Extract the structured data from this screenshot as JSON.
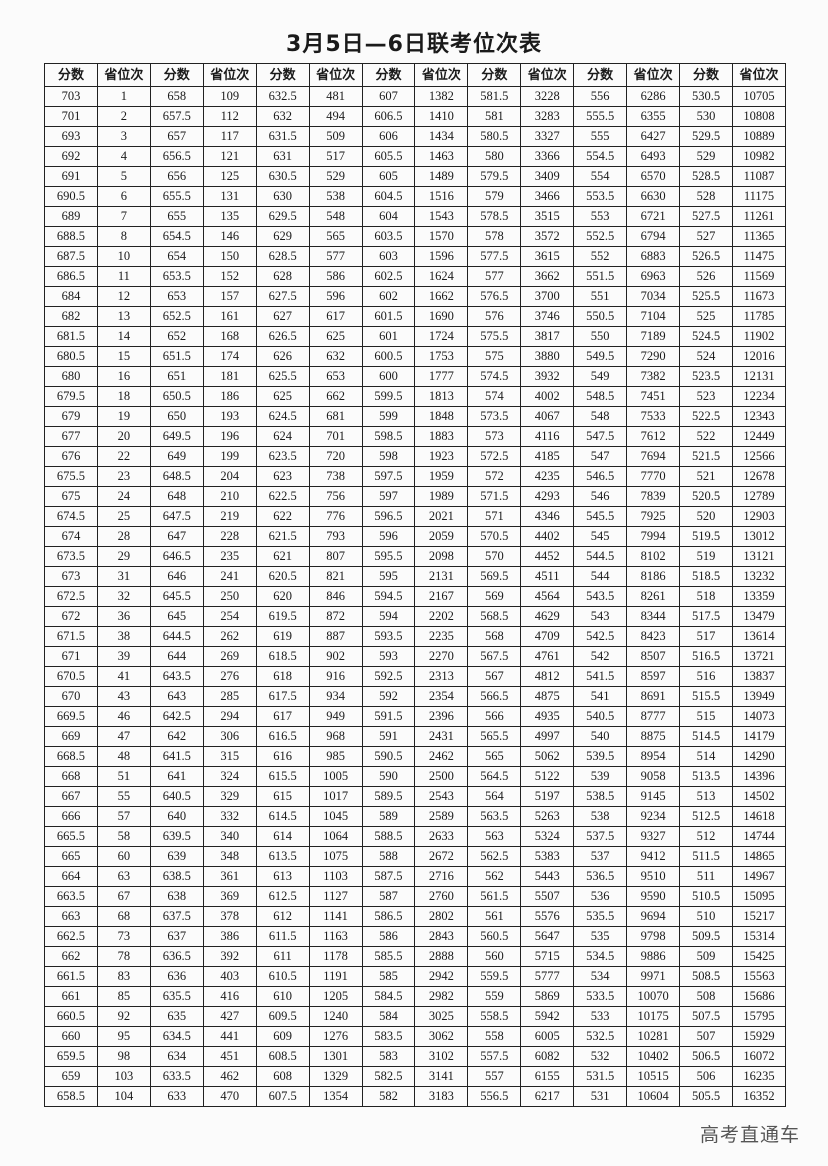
{
  "title": "3月5日—6日联考位次表",
  "watermark": "高考直通车",
  "columns": [
    "分数",
    "省位次",
    "分数",
    "省位次",
    "分数",
    "省位次",
    "分数",
    "省位次",
    "分数",
    "省位次",
    "分数",
    "省位次",
    "分数",
    "省位次"
  ],
  "rows": [
    [
      "703",
      "1",
      "658",
      "109",
      "632.5",
      "481",
      "607",
      "1382",
      "581.5",
      "3228",
      "556",
      "6286",
      "530.5",
      "10705"
    ],
    [
      "701",
      "2",
      "657.5",
      "112",
      "632",
      "494",
      "606.5",
      "1410",
      "581",
      "3283",
      "555.5",
      "6355",
      "530",
      "10808"
    ],
    [
      "693",
      "3",
      "657",
      "117",
      "631.5",
      "509",
      "606",
      "1434",
      "580.5",
      "3327",
      "555",
      "6427",
      "529.5",
      "10889"
    ],
    [
      "692",
      "4",
      "656.5",
      "121",
      "631",
      "517",
      "605.5",
      "1463",
      "580",
      "3366",
      "554.5",
      "6493",
      "529",
      "10982"
    ],
    [
      "691",
      "5",
      "656",
      "125",
      "630.5",
      "529",
      "605",
      "1489",
      "579.5",
      "3409",
      "554",
      "6570",
      "528.5",
      "11087"
    ],
    [
      "690.5",
      "6",
      "655.5",
      "131",
      "630",
      "538",
      "604.5",
      "1516",
      "579",
      "3466",
      "553.5",
      "6630",
      "528",
      "11175"
    ],
    [
      "689",
      "7",
      "655",
      "135",
      "629.5",
      "548",
      "604",
      "1543",
      "578.5",
      "3515",
      "553",
      "6721",
      "527.5",
      "11261"
    ],
    [
      "688.5",
      "8",
      "654.5",
      "146",
      "629",
      "565",
      "603.5",
      "1570",
      "578",
      "3572",
      "552.5",
      "6794",
      "527",
      "11365"
    ],
    [
      "687.5",
      "10",
      "654",
      "150",
      "628.5",
      "577",
      "603",
      "1596",
      "577.5",
      "3615",
      "552",
      "6883",
      "526.5",
      "11475"
    ],
    [
      "686.5",
      "11",
      "653.5",
      "152",
      "628",
      "586",
      "602.5",
      "1624",
      "577",
      "3662",
      "551.5",
      "6963",
      "526",
      "11569"
    ],
    [
      "684",
      "12",
      "653",
      "157",
      "627.5",
      "596",
      "602",
      "1662",
      "576.5",
      "3700",
      "551",
      "7034",
      "525.5",
      "11673"
    ],
    [
      "682",
      "13",
      "652.5",
      "161",
      "627",
      "617",
      "601.5",
      "1690",
      "576",
      "3746",
      "550.5",
      "7104",
      "525",
      "11785"
    ],
    [
      "681.5",
      "14",
      "652",
      "168",
      "626.5",
      "625",
      "601",
      "1724",
      "575.5",
      "3817",
      "550",
      "7189",
      "524.5",
      "11902"
    ],
    [
      "680.5",
      "15",
      "651.5",
      "174",
      "626",
      "632",
      "600.5",
      "1753",
      "575",
      "3880",
      "549.5",
      "7290",
      "524",
      "12016"
    ],
    [
      "680",
      "16",
      "651",
      "181",
      "625.5",
      "653",
      "600",
      "1777",
      "574.5",
      "3932",
      "549",
      "7382",
      "523.5",
      "12131"
    ],
    [
      "679.5",
      "18",
      "650.5",
      "186",
      "625",
      "662",
      "599.5",
      "1813",
      "574",
      "4002",
      "548.5",
      "7451",
      "523",
      "12234"
    ],
    [
      "679",
      "19",
      "650",
      "193",
      "624.5",
      "681",
      "599",
      "1848",
      "573.5",
      "4067",
      "548",
      "7533",
      "522.5",
      "12343"
    ],
    [
      "677",
      "20",
      "649.5",
      "196",
      "624",
      "701",
      "598.5",
      "1883",
      "573",
      "4116",
      "547.5",
      "7612",
      "522",
      "12449"
    ],
    [
      "676",
      "22",
      "649",
      "199",
      "623.5",
      "720",
      "598",
      "1923",
      "572.5",
      "4185",
      "547",
      "7694",
      "521.5",
      "12566"
    ],
    [
      "675.5",
      "23",
      "648.5",
      "204",
      "623",
      "738",
      "597.5",
      "1959",
      "572",
      "4235",
      "546.5",
      "7770",
      "521",
      "12678"
    ],
    [
      "675",
      "24",
      "648",
      "210",
      "622.5",
      "756",
      "597",
      "1989",
      "571.5",
      "4293",
      "546",
      "7839",
      "520.5",
      "12789"
    ],
    [
      "674.5",
      "25",
      "647.5",
      "219",
      "622",
      "776",
      "596.5",
      "2021",
      "571",
      "4346",
      "545.5",
      "7925",
      "520",
      "12903"
    ],
    [
      "674",
      "28",
      "647",
      "228",
      "621.5",
      "793",
      "596",
      "2059",
      "570.5",
      "4402",
      "545",
      "7994",
      "519.5",
      "13012"
    ],
    [
      "673.5",
      "29",
      "646.5",
      "235",
      "621",
      "807",
      "595.5",
      "2098",
      "570",
      "4452",
      "544.5",
      "8102",
      "519",
      "13121"
    ],
    [
      "673",
      "31",
      "646",
      "241",
      "620.5",
      "821",
      "595",
      "2131",
      "569.5",
      "4511",
      "544",
      "8186",
      "518.5",
      "13232"
    ],
    [
      "672.5",
      "32",
      "645.5",
      "250",
      "620",
      "846",
      "594.5",
      "2167",
      "569",
      "4564",
      "543.5",
      "8261",
      "518",
      "13359"
    ],
    [
      "672",
      "36",
      "645",
      "254",
      "619.5",
      "872",
      "594",
      "2202",
      "568.5",
      "4629",
      "543",
      "8344",
      "517.5",
      "13479"
    ],
    [
      "671.5",
      "38",
      "644.5",
      "262",
      "619",
      "887",
      "593.5",
      "2235",
      "568",
      "4709",
      "542.5",
      "8423",
      "517",
      "13614"
    ],
    [
      "671",
      "39",
      "644",
      "269",
      "618.5",
      "902",
      "593",
      "2270",
      "567.5",
      "4761",
      "542",
      "8507",
      "516.5",
      "13721"
    ],
    [
      "670.5",
      "41",
      "643.5",
      "276",
      "618",
      "916",
      "592.5",
      "2313",
      "567",
      "4812",
      "541.5",
      "8597",
      "516",
      "13837"
    ],
    [
      "670",
      "43",
      "643",
      "285",
      "617.5",
      "934",
      "592",
      "2354",
      "566.5",
      "4875",
      "541",
      "8691",
      "515.5",
      "13949"
    ],
    [
      "669.5",
      "46",
      "642.5",
      "294",
      "617",
      "949",
      "591.5",
      "2396",
      "566",
      "4935",
      "540.5",
      "8777",
      "515",
      "14073"
    ],
    [
      "669",
      "47",
      "642",
      "306",
      "616.5",
      "968",
      "591",
      "2431",
      "565.5",
      "4997",
      "540",
      "8875",
      "514.5",
      "14179"
    ],
    [
      "668.5",
      "48",
      "641.5",
      "315",
      "616",
      "985",
      "590.5",
      "2462",
      "565",
      "5062",
      "539.5",
      "8954",
      "514",
      "14290"
    ],
    [
      "668",
      "51",
      "641",
      "324",
      "615.5",
      "1005",
      "590",
      "2500",
      "564.5",
      "5122",
      "539",
      "9058",
      "513.5",
      "14396"
    ],
    [
      "667",
      "55",
      "640.5",
      "329",
      "615",
      "1017",
      "589.5",
      "2543",
      "564",
      "5197",
      "538.5",
      "9145",
      "513",
      "14502"
    ],
    [
      "666",
      "57",
      "640",
      "332",
      "614.5",
      "1045",
      "589",
      "2589",
      "563.5",
      "5263",
      "538",
      "9234",
      "512.5",
      "14618"
    ],
    [
      "665.5",
      "58",
      "639.5",
      "340",
      "614",
      "1064",
      "588.5",
      "2633",
      "563",
      "5324",
      "537.5",
      "9327",
      "512",
      "14744"
    ],
    [
      "665",
      "60",
      "639",
      "348",
      "613.5",
      "1075",
      "588",
      "2672",
      "562.5",
      "5383",
      "537",
      "9412",
      "511.5",
      "14865"
    ],
    [
      "664",
      "63",
      "638.5",
      "361",
      "613",
      "1103",
      "587.5",
      "2716",
      "562",
      "5443",
      "536.5",
      "9510",
      "511",
      "14967"
    ],
    [
      "663.5",
      "67",
      "638",
      "369",
      "612.5",
      "1127",
      "587",
      "2760",
      "561.5",
      "5507",
      "536",
      "9590",
      "510.5",
      "15095"
    ],
    [
      "663",
      "68",
      "637.5",
      "378",
      "612",
      "1141",
      "586.5",
      "2802",
      "561",
      "5576",
      "535.5",
      "9694",
      "510",
      "15217"
    ],
    [
      "662.5",
      "73",
      "637",
      "386",
      "611.5",
      "1163",
      "586",
      "2843",
      "560.5",
      "5647",
      "535",
      "9798",
      "509.5",
      "15314"
    ],
    [
      "662",
      "78",
      "636.5",
      "392",
      "611",
      "1178",
      "585.5",
      "2888",
      "560",
      "5715",
      "534.5",
      "9886",
      "509",
      "15425"
    ],
    [
      "661.5",
      "83",
      "636",
      "403",
      "610.5",
      "1191",
      "585",
      "2942",
      "559.5",
      "5777",
      "534",
      "9971",
      "508.5",
      "15563"
    ],
    [
      "661",
      "85",
      "635.5",
      "416",
      "610",
      "1205",
      "584.5",
      "2982",
      "559",
      "5869",
      "533.5",
      "10070",
      "508",
      "15686"
    ],
    [
      "660.5",
      "92",
      "635",
      "427",
      "609.5",
      "1240",
      "584",
      "3025",
      "558.5",
      "5942",
      "533",
      "10175",
      "507.5",
      "15795"
    ],
    [
      "660",
      "95",
      "634.5",
      "441",
      "609",
      "1276",
      "583.5",
      "3062",
      "558",
      "6005",
      "532.5",
      "10281",
      "507",
      "15929"
    ],
    [
      "659.5",
      "98",
      "634",
      "451",
      "608.5",
      "1301",
      "583",
      "3102",
      "557.5",
      "6082",
      "532",
      "10402",
      "506.5",
      "16072"
    ],
    [
      "659",
      "103",
      "633.5",
      "462",
      "608",
      "1329",
      "582.5",
      "3141",
      "557",
      "6155",
      "531.5",
      "10515",
      "506",
      "16235"
    ],
    [
      "658.5",
      "104",
      "633",
      "470",
      "607.5",
      "1354",
      "582",
      "3183",
      "556.5",
      "6217",
      "531",
      "10604",
      "505.5",
      "16352"
    ]
  ]
}
